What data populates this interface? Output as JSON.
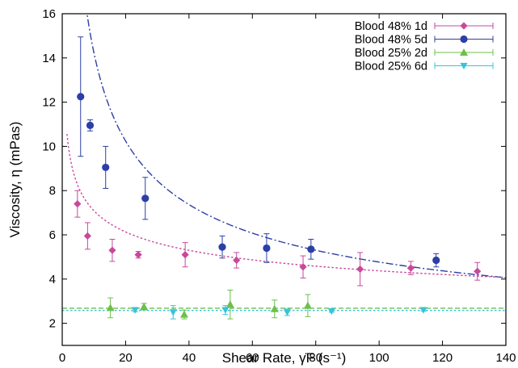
{
  "chart_data": {
    "type": "scatter",
    "xlabel": "Shear Rate, γ̇F (s⁻¹)",
    "ylabel": "Viscosity, η (mPas)",
    "xlim": [
      0,
      140
    ],
    "ylim": [
      1,
      16
    ],
    "xticks": [
      0,
      20,
      40,
      60,
      80,
      100,
      120,
      140
    ],
    "yticks": [
      2,
      4,
      6,
      8,
      10,
      12,
      14,
      16
    ],
    "xtick_labels": [
      "0",
      "20",
      "40",
      "60",
      "80",
      "100",
      "120",
      "140"
    ],
    "ytick_labels": [
      "2",
      "4",
      "6",
      "8",
      "10",
      "12",
      "14",
      "16"
    ],
    "grid": false,
    "legend_position": "top-right",
    "series": [
      {
        "name": "Blood 48% 1d",
        "color": "#c8489c",
        "marker": "diamond",
        "points": [
          {
            "x": 4.8,
            "y": 7.4,
            "err": 0.6
          },
          {
            "x": 8.0,
            "y": 5.95,
            "err": 0.6
          },
          {
            "x": 15.8,
            "y": 5.3,
            "err": 0.5
          },
          {
            "x": 24.0,
            "y": 5.1,
            "err": 0.15
          },
          {
            "x": 38.8,
            "y": 5.1,
            "err": 0.55
          },
          {
            "x": 55.0,
            "y": 4.85,
            "err": 0.35
          },
          {
            "x": 76.0,
            "y": 4.55,
            "err": 0.5
          },
          {
            "x": 94.0,
            "y": 4.45,
            "err": 0.75
          },
          {
            "x": 110.0,
            "y": 4.5,
            "err": 0.3
          },
          {
            "x": 131.0,
            "y": 4.35,
            "err": 0.4
          }
        ]
      },
      {
        "name": "Blood 48% 5d",
        "color": "#2c3fa6",
        "marker": "circle",
        "points": [
          {
            "x": 5.8,
            "y": 12.25,
            "err": 2.7
          },
          {
            "x": 8.8,
            "y": 10.95,
            "err": 0.25
          },
          {
            "x": 13.7,
            "y": 9.05,
            "err": 0.95
          },
          {
            "x": 26.2,
            "y": 7.65,
            "err": 0.95
          },
          {
            "x": 50.5,
            "y": 5.45,
            "err": 0.5
          },
          {
            "x": 64.5,
            "y": 5.4,
            "err": 0.65
          },
          {
            "x": 78.5,
            "y": 5.35,
            "err": 0.45
          },
          {
            "x": 118.0,
            "y": 4.85,
            "err": 0.3
          }
        ]
      },
      {
        "name": "Blood 25% 2d",
        "color": "#6cc04a",
        "marker": "triangle-up",
        "points": [
          {
            "x": 15.2,
            "y": 2.7,
            "err": 0.45
          },
          {
            "x": 25.8,
            "y": 2.75,
            "err": 0.15
          },
          {
            "x": 38.5,
            "y": 2.4,
            "err": 0.2
          },
          {
            "x": 53.0,
            "y": 2.85,
            "err": 0.65
          },
          {
            "x": 67.0,
            "y": 2.65,
            "err": 0.4
          },
          {
            "x": 77.5,
            "y": 2.8,
            "err": 0.5
          }
        ]
      },
      {
        "name": "Blood 25% 6d",
        "color": "#38c3d8",
        "marker": "triangle-down",
        "points": [
          {
            "x": 23.0,
            "y": 2.6,
            "err": 0.08
          },
          {
            "x": 35.0,
            "y": 2.5,
            "err": 0.3
          },
          {
            "x": 51.5,
            "y": 2.6,
            "err": 0.2
          },
          {
            "x": 71.0,
            "y": 2.5,
            "err": 0.15
          },
          {
            "x": 85.0,
            "y": 2.55,
            "err": 0.05
          },
          {
            "x": 114.0,
            "y": 2.6,
            "err": 0.05
          }
        ]
      }
    ],
    "fits": [
      {
        "series": "Blood 48% 5d",
        "style": "dash-dot",
        "color": "#2c3fa6",
        "model": "power",
        "a": 42.5,
        "b": -0.475,
        "x_from": 2.5,
        "x_to": 140
      },
      {
        "series": "Blood 48% 1d",
        "style": "dotted",
        "color": "#c8489c",
        "model": "power",
        "a": 11.5,
        "b": -0.21,
        "x_from": 1.5,
        "x_to": 140
      },
      {
        "series": "Blood 25% 2d",
        "style": "dashed",
        "color": "#6cc04a",
        "model": "constant",
        "a": 2.68,
        "x_from": 0,
        "x_to": 140
      },
      {
        "series": "Blood 25% 6d",
        "style": "dotted",
        "color": "#38c3d8",
        "model": "constant",
        "a": 2.58,
        "x_from": 0,
        "x_to": 140
      }
    ]
  }
}
